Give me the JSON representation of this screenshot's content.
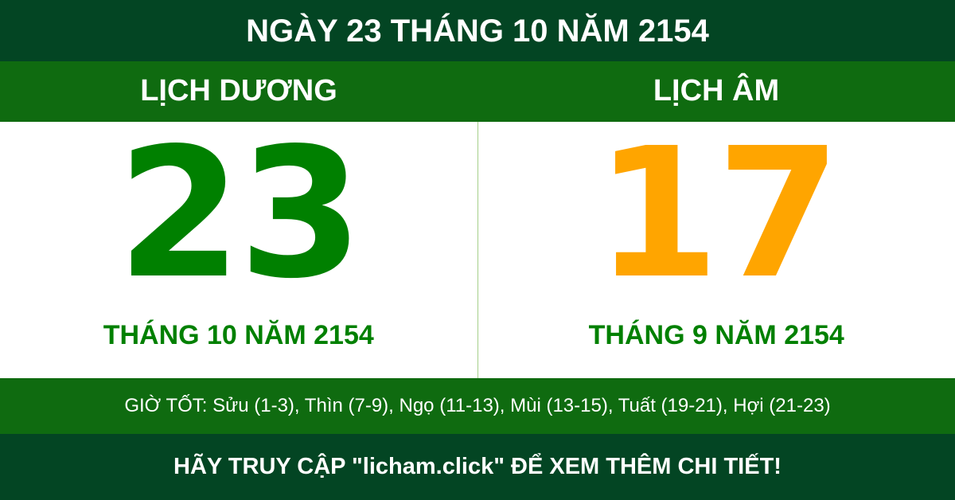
{
  "title": "NGÀY 23 THÁNG 10 NĂM 2154",
  "solar": {
    "label": "LỊCH DƯƠNG",
    "day": "23",
    "month_year": "THÁNG 10 NĂM 2154"
  },
  "lunar": {
    "label": "LỊCH ÂM",
    "day": "17",
    "month_year": "THÁNG 9 NĂM 2154"
  },
  "good_hours": "GIỜ TỐT: Sửu (1-3), Thìn (7-9), Ngọ (11-13), Mùi (13-15), Tuất (19-21), Hợi (21-23)",
  "footer": "HÃY TRUY CẬP \"licham.click\" ĐỂ XEM THÊM CHI TIẾT!",
  "colors": {
    "dark_green": "#034523",
    "band_green": "#0f6b10",
    "solar_green": "#008000",
    "lunar_orange": "#ffa500"
  }
}
